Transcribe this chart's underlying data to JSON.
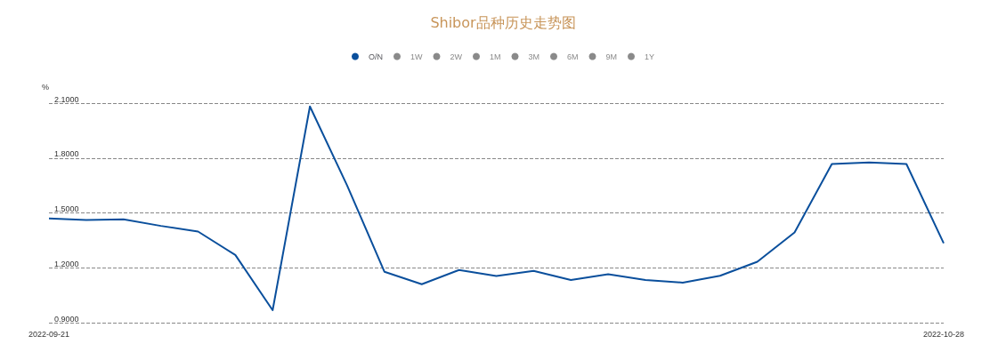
{
  "chart_data": {
    "type": "line",
    "title": "Shibor品种历史走势图",
    "ylabel": "%",
    "categories": [
      "2022-09-21",
      null,
      null,
      null,
      null,
      null,
      null,
      null,
      null,
      null,
      null,
      null,
      null,
      null,
      null,
      null,
      null,
      null,
      null,
      null,
      null,
      null,
      null,
      null,
      "2022-10-28"
    ],
    "series": [
      {
        "name": "O/N",
        "color": "#0a4f9c",
        "values": [
          1.47,
          1.461,
          1.465,
          1.429,
          1.398,
          1.27,
          0.968,
          2.082,
          1.649,
          1.178,
          1.11,
          1.188,
          1.155,
          1.183,
          1.133,
          1.165,
          1.133,
          1.119,
          1.156,
          1.233,
          1.393,
          1.767,
          1.776,
          1.767,
          1.334
        ]
      },
      {
        "name": "1W",
        "values": [
          null,
          null,
          null,
          null,
          null,
          null,
          null,
          null,
          null,
          null,
          null,
          null,
          null,
          null,
          null,
          null,
          null,
          null,
          null,
          null,
          null,
          null,
          null,
          null,
          null
        ]
      },
      {
        "name": "2W",
        "values": [
          null,
          null,
          null,
          null,
          null,
          null,
          null,
          null,
          null,
          null,
          null,
          null,
          null,
          null,
          null,
          null,
          null,
          null,
          null,
          null,
          null,
          null,
          null,
          null,
          null
        ]
      },
      {
        "name": "1M",
        "values": [
          null,
          null,
          null,
          null,
          null,
          null,
          null,
          null,
          null,
          null,
          null,
          null,
          null,
          null,
          null,
          null,
          null,
          null,
          null,
          null,
          null,
          null,
          null,
          null,
          null
        ]
      },
      {
        "name": "3M",
        "values": [
          null,
          null,
          null,
          null,
          null,
          null,
          null,
          null,
          null,
          null,
          null,
          null,
          null,
          null,
          null,
          null,
          null,
          null,
          null,
          null,
          null,
          null,
          null,
          null,
          null
        ]
      },
      {
        "name": "6M",
        "values": [
          null,
          null,
          null,
          null,
          null,
          null,
          null,
          null,
          null,
          null,
          null,
          null,
          null,
          null,
          null,
          null,
          null,
          null,
          null,
          null,
          null,
          null,
          null,
          null,
          null
        ]
      },
      {
        "name": "9M",
        "values": [
          null,
          null,
          null,
          null,
          null,
          null,
          null,
          null,
          null,
          null,
          null,
          null,
          null,
          null,
          null,
          null,
          null,
          null,
          null,
          null,
          null,
          null,
          null,
          null,
          null
        ]
      },
      {
        "name": "1Y",
        "values": [
          null,
          null,
          null,
          null,
          null,
          null,
          null,
          null,
          null,
          null,
          null,
          null,
          null,
          null,
          null,
          null,
          null,
          null,
          null,
          null,
          null,
          null,
          null,
          null,
          null
        ]
      }
    ],
    "ylim": [
      0.9,
      2.1
    ],
    "yticks": [
      {
        "value": 0.9,
        "label": "0.9000"
      },
      {
        "value": 1.2,
        "label": "1.2000"
      },
      {
        "value": 1.5,
        "label": "1.5000"
      },
      {
        "value": 1.8,
        "label": "1.8000"
      },
      {
        "value": 2.1,
        "label": "2.1000"
      }
    ],
    "grid": "y",
    "legend": "top",
    "marker": "none",
    "line_style": "solid"
  }
}
